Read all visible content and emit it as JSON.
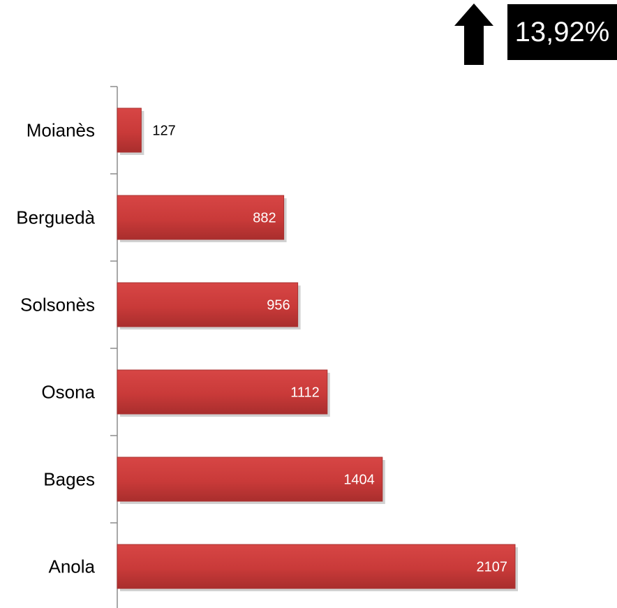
{
  "indicator": {
    "arrow_icon": "up-arrow-icon",
    "change_text": "13,92%",
    "badge_color": "#000000"
  },
  "chart_data": {
    "type": "bar",
    "orientation": "horizontal",
    "categories": [
      "Moianès",
      "Berguedà",
      "Solsonès",
      "Osona",
      "Bages",
      "Anola"
    ],
    "values": [
      127,
      882,
      956,
      1112,
      1404,
      2107
    ],
    "bar_color": "#cf3b3a",
    "xlim": [
      0,
      2200
    ],
    "grid": false,
    "legend": "none"
  }
}
